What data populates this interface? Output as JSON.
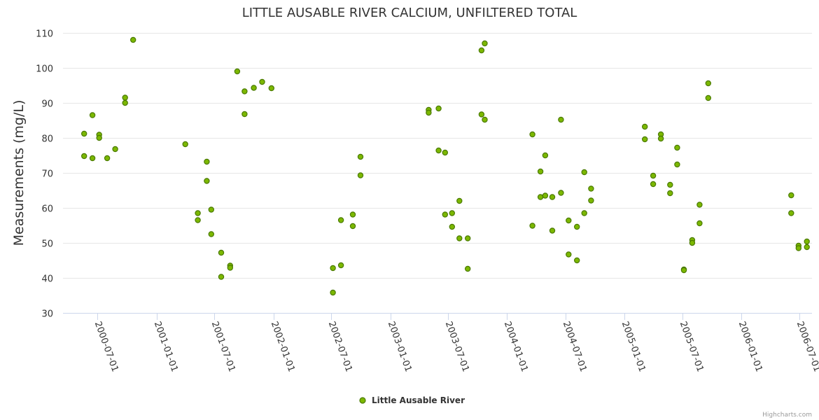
{
  "chart_data": {
    "type": "scatter",
    "title": "LITTLE AUSABLE RIVER CALCIUM, UNFILTERED TOTAL",
    "ylabel": "Measurements (mg/L)",
    "xlabel": "",
    "ylim": [
      30,
      110
    ],
    "yticks": [
      30,
      40,
      50,
      60,
      70,
      80,
      90,
      100,
      110
    ],
    "xlim": [
      "2000-03-15",
      "2006-08-10"
    ],
    "xticks": [
      "2000-07-01",
      "2001-01-01",
      "2001-07-01",
      "2002-01-01",
      "2002-07-01",
      "2003-01-01",
      "2003-07-01",
      "2004-01-01",
      "2004-07-01",
      "2005-01-01",
      "2005-07-01",
      "2006-01-01",
      "2006-07-01"
    ],
    "legend_position": "bottom-center",
    "credits": "Highcharts.com",
    "series": [
      {
        "name": "Little Ausable River",
        "color": "#7cb800",
        "edge_color": "#4a7a00",
        "points": [
          [
            "2000-05-20",
            81.2
          ],
          [
            "2000-05-20",
            74.8
          ],
          [
            "2000-06-15",
            86.5
          ],
          [
            "2000-06-15",
            74.2
          ],
          [
            "2000-07-06",
            80.9
          ],
          [
            "2000-07-06",
            80.0
          ],
          [
            "2000-07-31",
            74.2
          ],
          [
            "2000-08-25",
            76.8
          ],
          [
            "2000-09-25",
            91.5
          ],
          [
            "2000-09-25",
            90.0
          ],
          [
            "2000-10-20",
            108.0
          ],
          [
            "2001-04-01",
            78.2
          ],
          [
            "2001-05-10",
            58.5
          ],
          [
            "2001-05-10",
            56.5
          ],
          [
            "2001-06-07",
            73.2
          ],
          [
            "2001-06-07",
            67.7
          ],
          [
            "2001-06-21",
            59.5
          ],
          [
            "2001-06-21",
            52.5
          ],
          [
            "2001-07-22",
            47.2
          ],
          [
            "2001-07-22",
            40.3
          ],
          [
            "2001-08-19",
            43.5
          ],
          [
            "2001-08-19",
            42.9
          ],
          [
            "2001-09-10",
            99.0
          ],
          [
            "2001-10-03",
            93.3
          ],
          [
            "2001-10-03",
            86.8
          ],
          [
            "2001-11-01",
            94.3
          ],
          [
            "2001-11-27",
            96.0
          ],
          [
            "2001-12-26",
            94.2
          ],
          [
            "2002-07-06",
            42.8
          ],
          [
            "2002-07-06",
            35.8
          ],
          [
            "2002-07-31",
            56.5
          ],
          [
            "2002-07-31",
            43.6
          ],
          [
            "2002-09-06",
            58.1
          ],
          [
            "2002-09-06",
            54.8
          ],
          [
            "2002-09-30",
            74.6
          ],
          [
            "2002-09-30",
            69.3
          ],
          [
            "2003-05-01",
            88.0
          ],
          [
            "2003-05-01",
            87.2
          ],
          [
            "2003-06-01",
            88.4
          ],
          [
            "2003-06-01",
            76.4
          ],
          [
            "2003-06-21",
            75.8
          ],
          [
            "2003-06-21",
            58.1
          ],
          [
            "2003-07-13",
            58.5
          ],
          [
            "2003-07-13",
            54.6
          ],
          [
            "2003-08-05",
            62.0
          ],
          [
            "2003-08-05",
            51.3
          ],
          [
            "2003-08-31",
            51.3
          ],
          [
            "2003-08-31",
            42.6
          ],
          [
            "2003-10-13",
            105.0
          ],
          [
            "2003-10-13",
            86.7
          ],
          [
            "2003-10-23",
            107.0
          ],
          [
            "2003-10-23",
            85.2
          ],
          [
            "2004-03-20",
            81.0
          ],
          [
            "2004-03-20",
            54.9
          ],
          [
            "2004-04-14",
            70.4
          ],
          [
            "2004-04-14",
            63.1
          ],
          [
            "2004-04-29",
            75.0
          ],
          [
            "2004-04-29",
            63.5
          ],
          [
            "2004-05-21",
            63.1
          ],
          [
            "2004-05-21",
            53.5
          ],
          [
            "2004-06-17",
            85.2
          ],
          [
            "2004-06-17",
            64.3
          ],
          [
            "2004-07-11",
            56.4
          ],
          [
            "2004-07-11",
            46.7
          ],
          [
            "2004-08-06",
            54.6
          ],
          [
            "2004-08-06",
            45.0
          ],
          [
            "2004-08-29",
            70.2
          ],
          [
            "2004-08-29",
            58.5
          ],
          [
            "2004-09-19",
            65.5
          ],
          [
            "2004-09-19",
            62.1
          ],
          [
            "2005-03-06",
            83.2
          ],
          [
            "2005-03-06",
            79.6
          ],
          [
            "2005-04-01",
            69.2
          ],
          [
            "2005-04-01",
            66.8
          ],
          [
            "2005-04-25",
            81.0
          ],
          [
            "2005-04-25",
            79.8
          ],
          [
            "2005-05-24",
            66.6
          ],
          [
            "2005-05-24",
            64.2
          ],
          [
            "2005-06-15",
            77.2
          ],
          [
            "2005-06-15",
            72.4
          ],
          [
            "2005-07-06",
            42.4
          ],
          [
            "2005-07-06",
            42.2
          ],
          [
            "2005-08-01",
            50.8
          ],
          [
            "2005-08-01",
            50.0
          ],
          [
            "2005-08-24",
            60.9
          ],
          [
            "2005-08-24",
            55.6
          ],
          [
            "2005-09-20",
            95.6
          ],
          [
            "2005-09-20",
            91.4
          ],
          [
            "2006-06-06",
            63.6
          ],
          [
            "2006-06-06",
            58.5
          ],
          [
            "2006-06-29",
            49.2
          ],
          [
            "2006-06-29",
            48.5
          ],
          [
            "2006-07-25",
            50.4
          ],
          [
            "2006-07-25",
            48.8
          ]
        ]
      }
    ]
  }
}
